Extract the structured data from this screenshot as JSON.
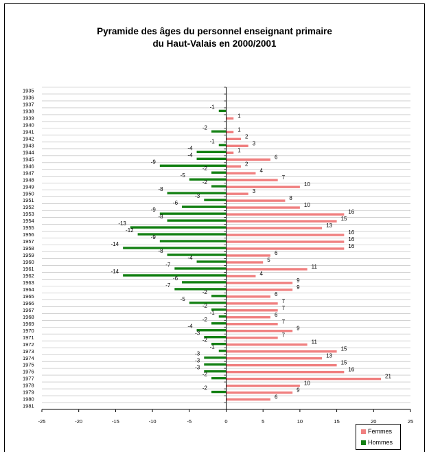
{
  "chart_data": {
    "type": "bar",
    "orientation": "horizontal",
    "title_line1": "Pyramide des âges du personnel enseignant primaire",
    "title_line2": "du Haut-Valais en 2000/2001",
    "xlim": [
      -25,
      25
    ],
    "x_ticks": [
      "-25",
      "-20",
      "-15",
      "-10",
      "-5",
      "0",
      "5",
      "10",
      "15",
      "20",
      "25"
    ],
    "legend_position": "bottom-right",
    "categories": [
      "1935",
      "1936",
      "1937",
      "1938",
      "1939",
      "1940",
      "1941",
      "1942",
      "1943",
      "1944",
      "1945",
      "1946",
      "1947",
      "1948",
      "1949",
      "1950",
      "1951",
      "1952",
      "1953",
      "1954",
      "1955",
      "1956",
      "1957",
      "1958",
      "1959",
      "1960",
      "1961",
      "1962",
      "1963",
      "1964",
      "1965",
      "1966",
      "1967",
      "1968",
      "1969",
      "1970",
      "1971",
      "1972",
      "1973",
      "1974",
      "1975",
      "1976",
      "1977",
      "1978",
      "1979",
      "1980",
      "1981"
    ],
    "series": [
      {
        "name": "Femmes",
        "color": "#f08080",
        "values": [
          null,
          null,
          null,
          null,
          1,
          null,
          1,
          2,
          3,
          1,
          6,
          2,
          4,
          7,
          10,
          3,
          8,
          10,
          16,
          15,
          13,
          16,
          16,
          16,
          6,
          5,
          11,
          4,
          9,
          9,
          6,
          7,
          7,
          6,
          7,
          9,
          7,
          11,
          15,
          13,
          15,
          16,
          21,
          10,
          9,
          6,
          null
        ]
      },
      {
        "name": "Hommes",
        "color": "#138013",
        "values": [
          null,
          null,
          null,
          -1,
          null,
          null,
          -2,
          null,
          -1,
          -4,
          -4,
          -9,
          -2,
          -5,
          -2,
          -8,
          -3,
          -6,
          -9,
          -8,
          -13,
          -12,
          -9,
          -14,
          -8,
          -4,
          -7,
          -14,
          -6,
          -7,
          -2,
          -5,
          -2,
          -1,
          -2,
          -4,
          -3,
          -2,
          -1,
          -3,
          -3,
          -3,
          -2,
          null,
          -2,
          null,
          null
        ]
      }
    ]
  }
}
